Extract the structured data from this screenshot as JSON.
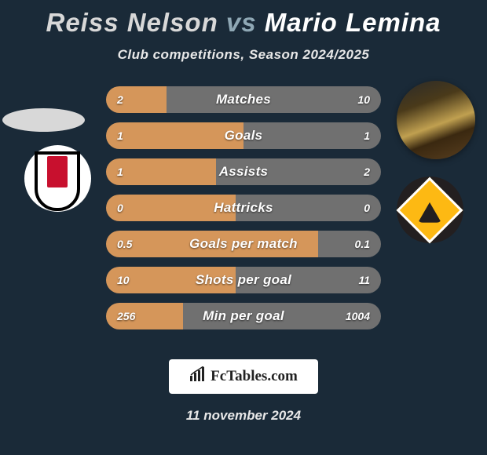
{
  "title": {
    "player1": "Reiss Nelson",
    "vs": "vs",
    "player2": "Mario Lemina",
    "player1_color": "#d8d8d8",
    "vs_color": "#8fa8b5",
    "player2_color": "#ffffff",
    "fontsize": 33
  },
  "subtitle": "Club competitions, Season 2024/2025",
  "date": "11 november 2024",
  "footer_brand": "FcTables.com",
  "background_color": "#1a2a38",
  "bar_colors": {
    "left": "#d5965a",
    "right": "#707070"
  },
  "bar_labels_fontsize": 17,
  "bar_values_fontsize": 14,
  "stats": [
    {
      "label": "Matches",
      "left_val": "2",
      "right_val": "10",
      "left_pct": 22,
      "right_pct": 78
    },
    {
      "label": "Goals",
      "left_val": "1",
      "right_val": "1",
      "left_pct": 50,
      "right_pct": 50
    },
    {
      "label": "Assists",
      "left_val": "1",
      "right_val": "2",
      "left_pct": 40,
      "right_pct": 60
    },
    {
      "label": "Hattricks",
      "left_val": "0",
      "right_val": "0",
      "left_pct": 47,
      "right_pct": 53
    },
    {
      "label": "Goals per match",
      "left_val": "0.5",
      "right_val": "0.1",
      "left_pct": 77,
      "right_pct": 23
    },
    {
      "label": "Shots per goal",
      "left_val": "10",
      "right_val": "11",
      "left_pct": 47,
      "right_pct": 53
    },
    {
      "label": "Min per goal",
      "left_val": "256",
      "right_val": "1004",
      "left_pct": 28,
      "right_pct": 72
    }
  ],
  "icons": {
    "left_player": "oval-grey-placeholder",
    "right_player": "mario-lemina-photo",
    "left_club": "fulham-badge",
    "right_club": "wolves-badge"
  }
}
